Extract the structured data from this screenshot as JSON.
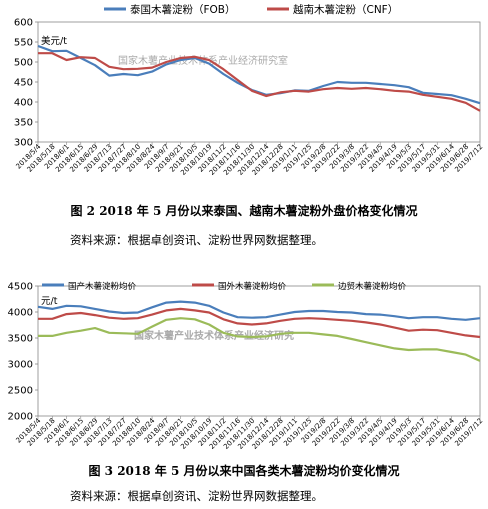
{
  "figures": [
    {
      "caption": "图 2   2018 年 5 月份以来泰国、越南木薯淀粉外盘价格变化情况",
      "source": "资料来源：根据卓创资讯、淀粉世界网数据整理。"
    },
    {
      "caption": "图 3   2018 年 5 月份以来中国各类木薯淀粉均价变化情况",
      "source": "资料来源：根据卓创资讯、淀粉世界网数据整理。"
    }
  ],
  "chart_data": [
    {
      "type": "line",
      "unit_label": "美元/t",
      "watermark": "国家木薯产业技术体系产业经济研究室",
      "ylim": [
        300,
        600
      ],
      "yticks": [
        300,
        350,
        400,
        450,
        500,
        550,
        600
      ],
      "legend_position": "top",
      "x": [
        "2018/5/4",
        "2018/5/18",
        "2018/6/1",
        "2018/6/15",
        "2018/6/29",
        "2018/7/13",
        "2018/7/27",
        "2018/8/10",
        "2018/8/24",
        "2018/9/7",
        "2018/9/21",
        "2018/10/5",
        "2018/10/19",
        "2018/11/2",
        "2018/11/16",
        "2018/11/30",
        "2018/12/14",
        "2018/12/28",
        "2019/1/11",
        "2019/1/25",
        "2019/2/8",
        "2019/2/22",
        "2019/3/8",
        "2019/3/22",
        "2019/4/5",
        "2019/4/19",
        "2019/5/3",
        "2019/5/17",
        "2019/5/31",
        "2019/6/14",
        "2019/6/28",
        "2019/7/12"
      ],
      "series": [
        {
          "name": "泰国木薯淀粉（FOB）",
          "color": "#4a7ebb",
          "values": [
            540,
            527,
            528,
            510,
            492,
            466,
            470,
            467,
            476,
            494,
            505,
            510,
            496,
            470,
            448,
            430,
            418,
            422,
            429,
            428,
            440,
            450,
            448,
            448,
            445,
            442,
            437,
            423,
            420,
            417,
            408,
            397
          ]
        },
        {
          "name": "越南木薯淀粉（CNF）",
          "color": "#be4b48",
          "values": [
            522,
            522,
            505,
            512,
            510,
            488,
            482,
            483,
            486,
            500,
            510,
            513,
            505,
            482,
            455,
            428,
            415,
            424,
            428,
            426,
            432,
            435,
            433,
            435,
            432,
            428,
            426,
            418,
            413,
            408,
            398,
            378
          ]
        }
      ]
    },
    {
      "type": "line",
      "unit_label": "元/t",
      "watermark": "国家木薯产业技术体系产业经济研究",
      "ylim": [
        2000,
        4500
      ],
      "yticks": [
        2000,
        2500,
        3000,
        3500,
        4000,
        4500
      ],
      "legend_position": "top",
      "x": [
        "2018/5/4",
        "2018/5/18",
        "2018/6/1",
        "2018/6/15",
        "2018/6/29",
        "2018/7/13",
        "2018/7/27",
        "2018/8/10",
        "2018/8/24",
        "2018/9/7",
        "2018/9/21",
        "2018/10/5",
        "2018/10/19",
        "2018/11/2",
        "2018/11/16",
        "2018/11/30",
        "2018/12/14",
        "2018/12/28",
        "2019/1/11",
        "2019/1/25",
        "2019/2/8",
        "2019/2/22",
        "2019/3/8",
        "2019/3/22",
        "2019/4/5",
        "2019/4/19",
        "2019/5/3",
        "2019/5/17",
        "2019/5/31",
        "2019/6/14",
        "2019/6/28",
        "2019/7/12"
      ],
      "series": [
        {
          "name": "国产木薯淀粉均价",
          "color": "#4a7ebb",
          "values": [
            4100,
            4060,
            4120,
            4110,
            4060,
            4010,
            3980,
            3990,
            4090,
            4180,
            4200,
            4180,
            4120,
            3990,
            3900,
            3890,
            3900,
            3950,
            4000,
            4020,
            4020,
            4000,
            3990,
            3960,
            3950,
            3920,
            3880,
            3900,
            3900,
            3870,
            3850,
            3880
          ]
        },
        {
          "name": "国外木薯淀粉均价",
          "color": "#be4b48",
          "values": [
            3870,
            3870,
            3960,
            3980,
            3940,
            3890,
            3870,
            3880,
            3950,
            4030,
            4060,
            4030,
            3990,
            3860,
            3780,
            3760,
            3780,
            3830,
            3870,
            3880,
            3870,
            3850,
            3830,
            3800,
            3760,
            3700,
            3640,
            3660,
            3650,
            3600,
            3550,
            3520
          ]
        },
        {
          "name": "边贸木薯淀粉均价",
          "color": "#9bbb59",
          "values": [
            3540,
            3540,
            3600,
            3640,
            3690,
            3600,
            3590,
            3580,
            3720,
            3850,
            3880,
            3860,
            3760,
            3600,
            3530,
            3520,
            3530,
            3580,
            3600,
            3600,
            3570,
            3540,
            3480,
            3420,
            3360,
            3300,
            3270,
            3280,
            3280,
            3230,
            3180,
            3060
          ]
        }
      ]
    }
  ]
}
